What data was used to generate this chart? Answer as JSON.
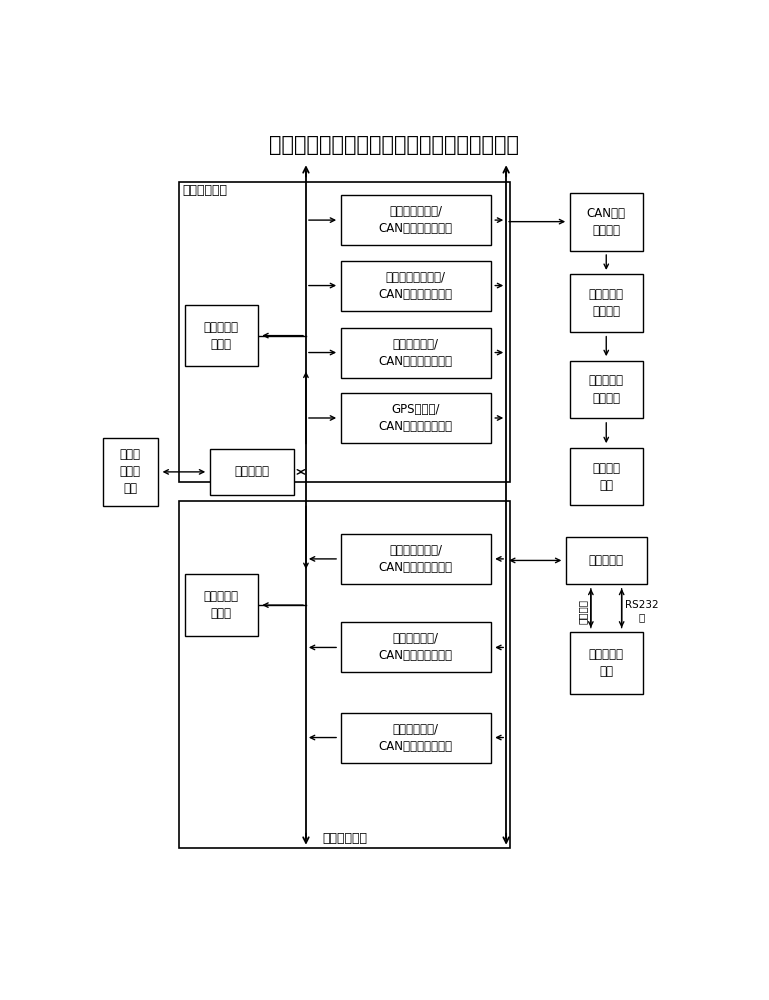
{
  "title": "基于部件模拟器的卫星飞行控制闭环仿真系统",
  "title_fontsize": 15,
  "bg_color": "#ffffff",
  "sensor_boxes": [
    "星敏感器以太网/\nCAN数据接口转换器",
    "太阳敏感器以太网/\nCAN数据接口转换器",
    "磁强计以太网/\nCAN数据接口转换器",
    "GPS以太网/\nCAN数据接口转换器"
  ],
  "actuator_boxes": [
    "磁力矩器以太网/\nCAN数据接口转换器",
    "推力器以太网/\nCAN数据接口转换器",
    "动量轮以太网/\nCAN数据接口转换器"
  ],
  "label_sensor_outer": "敏感器模拟器",
  "label_actuator_outer": "执行器模拟器",
  "label_sensor_server": "敏感器仿真\n服务器",
  "label_switch": "高速交换机",
  "label_dynamics": "动力学\n仿真服\n务器",
  "label_actuator_server": "执行器仿真\n服务器",
  "label_can": "CAN转以\n太网设备",
  "label_wireless1": "第一无线网\n络收发器",
  "label_wireless2": "第二无线网\n络收发器",
  "label_ground": "地面站模\n拟器",
  "label_onboard": "星载计算机",
  "label_storage": "数据存储服\n务器",
  "label_ethernet_line": "以太网线",
  "label_rs232": "RS232\n线"
}
